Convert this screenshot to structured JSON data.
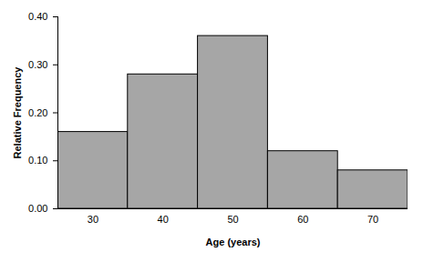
{
  "chart_data": {
    "type": "histogram",
    "xlabel": "Age (years)",
    "ylabel": "Relative Frequency",
    "bins": [
      25,
      35,
      45,
      55,
      65,
      75
    ],
    "values": [
      0.16,
      0.28,
      0.36,
      0.12,
      0.08
    ],
    "color": "#a6a6a6",
    "xlim": [
      25,
      75
    ],
    "xticks": [
      30,
      40,
      50,
      60,
      70
    ],
    "ylim": [
      0,
      0.4
    ],
    "yticks": [
      0,
      0.1,
      0.2,
      0.3,
      0.4
    ],
    "grid": false
  }
}
